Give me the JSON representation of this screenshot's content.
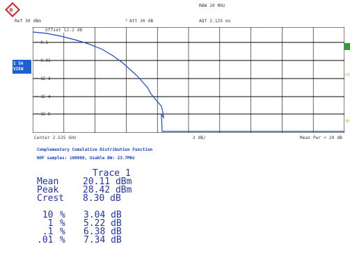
{
  "header": {
    "rbw": "RBW 20 MHz",
    "ref": "Ref  30 dBm",
    "att_marker": "*",
    "att": "Att  30 dB",
    "aqt": "AQT 3.125 ms",
    "offset": "Offset  12.2 dB"
  },
  "side_badge": {
    "line1": "1 SA",
    "line2": "VIEW"
  },
  "y_axis_labels": [
    "0.1",
    "0.01",
    "1E-3",
    "1E-4",
    "1E-5"
  ],
  "footer": {
    "center": "Center 2.535 GHz",
    "span": "2 dB/",
    "mean_pwr": "Mean Pwr + 20 dB"
  },
  "ccdf": {
    "title": "Complementary Cumulative Distribution Function",
    "samples": "NOF samples: 100000, Usable BW:  23.7MHz"
  },
  "stats": {
    "trace_label": "Trace 1",
    "rows": [
      {
        "name": "Mean",
        "value": "20.11 dBm"
      },
      {
        "name": "Peak",
        "value": "28.42 dBm"
      },
      {
        "name": "Crest",
        "value": " 8.30 dB"
      }
    ],
    "percent_rows": [
      {
        "pct": " 10",
        "unit": "%",
        "value": "3.04 dB"
      },
      {
        "pct": "  1",
        "unit": "%",
        "value": "5.22 dB"
      },
      {
        "pct": " .1",
        "unit": "%",
        "value": "6.38 dB"
      },
      {
        "pct": ".01",
        "unit": "%",
        "value": "7.34 dB"
      }
    ]
  },
  "right_edge_labels": [
    "LV",
    "3D"
  ],
  "colors": {
    "trace": "#1646c8",
    "badge": "#1e5fd6",
    "accent_green": "#2aa12a"
  }
}
